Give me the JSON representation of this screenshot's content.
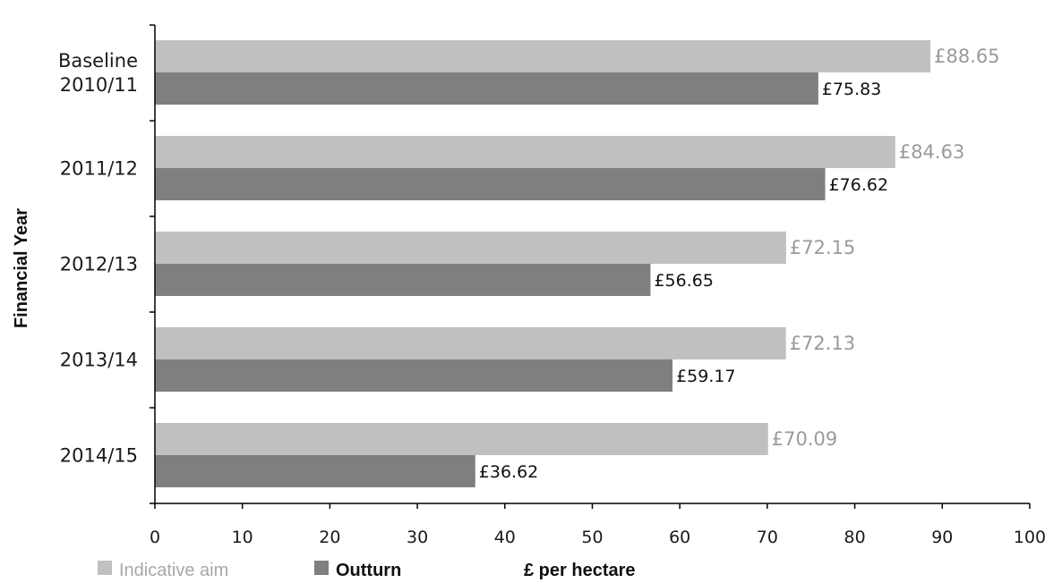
{
  "chart_data": {
    "type": "bar",
    "orientation": "horizontal",
    "categories": [
      [
        "Baseline",
        "2010/11"
      ],
      [
        "2011/12"
      ],
      [
        "2012/13"
      ],
      [
        "2013/14"
      ],
      [
        "2014/15"
      ]
    ],
    "series": [
      {
        "name": "Indicative aim",
        "color": "#c0c0c0",
        "values": [
          88.65,
          84.63,
          72.15,
          72.13,
          70.09
        ],
        "labels": [
          "£88.65",
          "£84.63",
          "£72.15",
          "£72.13",
          "£70.09"
        ]
      },
      {
        "name": "Outturn",
        "color": "#7f7f7f",
        "values": [
          75.83,
          76.62,
          56.65,
          59.17,
          36.62
        ],
        "labels": [
          "£75.83",
          "£76.62",
          "£56.65",
          "£59.17",
          "£36.62"
        ]
      }
    ],
    "xlabel": "£ per hectare",
    "ylabel": "Financial Year",
    "xlim": [
      0,
      100
    ],
    "xticks": [
      0,
      10,
      20,
      30,
      40,
      50,
      60,
      70,
      80,
      90,
      100
    ],
    "grid": false,
    "legend_position": "bottom-left"
  }
}
